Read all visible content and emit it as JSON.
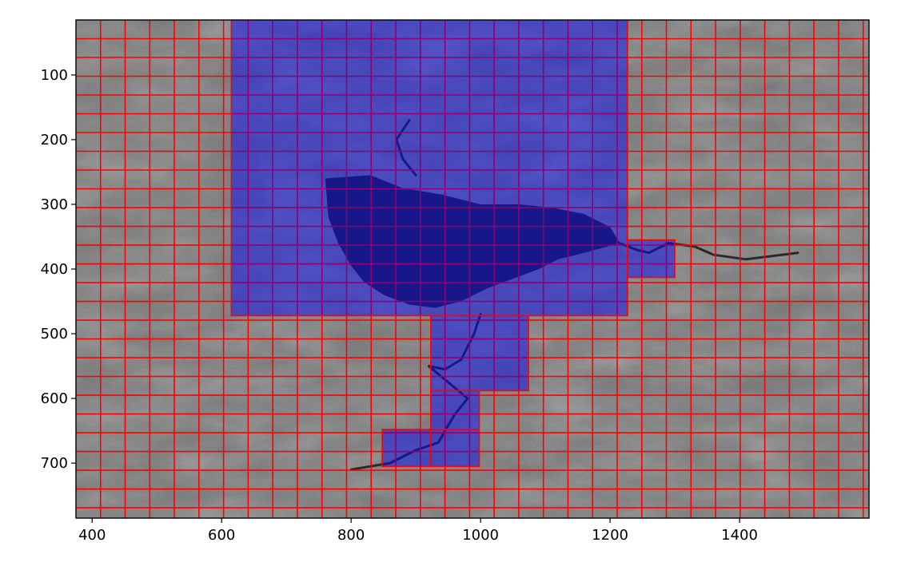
{
  "chart_data": {
    "type": "heatmap",
    "title": "",
    "xlabel": "",
    "ylabel": "",
    "xlim": [
      375,
      1600
    ],
    "ylim": [
      785,
      15
    ],
    "x_ticks": [
      400,
      600,
      800,
      1000,
      1200,
      1400
    ],
    "y_ticks": [
      100,
      200,
      300,
      400,
      500,
      600,
      700
    ],
    "grid": false,
    "grid_cell": {
      "x_start": 375,
      "x_step": 38,
      "y_start": 15,
      "y_step": 29
    },
    "overlay_color": "#0000ff",
    "grid_line_color": "#ff0000",
    "regions": [
      {
        "x0": 615,
        "x1": 1227,
        "y0": 15,
        "y1": 472
      },
      {
        "x0": 1227,
        "x1": 1300,
        "y0": 355,
        "y1": 413
      },
      {
        "x0": 923,
        "x1": 1074,
        "y0": 472,
        "y1": 588
      },
      {
        "x0": 923,
        "x1": 998,
        "y0": 588,
        "y1": 648
      },
      {
        "x0": 848,
        "x1": 923,
        "y0": 648,
        "y1": 705
      },
      {
        "x0": 923,
        "x1": 998,
        "y0": 648,
        "y1": 705
      }
    ]
  }
}
